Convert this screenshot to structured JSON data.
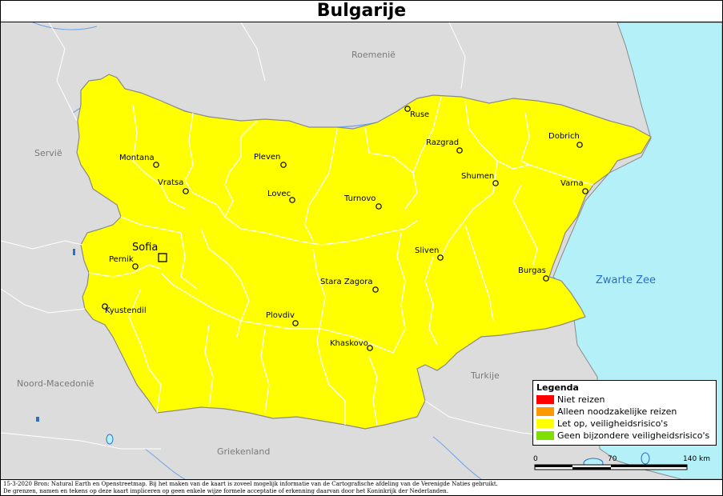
{
  "title": "Bulgarije",
  "neighbors": {
    "romania": "Roemenië",
    "serbia": "Servië",
    "north_macedonia": "Noord-Macedonië",
    "greece": "Griekenland",
    "turkey": "Turkije"
  },
  "sea": "Zwarte Zee",
  "capital": "Sofia",
  "cities": [
    "Ruse",
    "Dobrich",
    "Razgrad",
    "Montana",
    "Pleven",
    "Shumen",
    "Varna",
    "Vratsa",
    "Lovec",
    "Turnovo",
    "Pernik",
    "Sliven",
    "Burgas",
    "Stara Zagora",
    "Kyustendil",
    "Plovdiv",
    "Khaskovo"
  ],
  "colors": {
    "country_fill": "#ffff00",
    "neighbor_land": "#dcdcdc",
    "sea": "#b3f0f8",
    "border": "#8a8a8a",
    "province_border": "#ffffff"
  },
  "legend": {
    "title": "Legenda",
    "items": [
      {
        "label": "Niet reizen",
        "color": "#ff0000"
      },
      {
        "label": "Alleen noodzakelijke reizen",
        "color": "#ff9900"
      },
      {
        "label": "Let op, veiligheidsrisico's",
        "color": "#ffff00"
      },
      {
        "label": "Geen bijzondere veiligheidsrisico's",
        "color": "#7fe000"
      }
    ]
  },
  "scale": {
    "labels": [
      "0",
      "70",
      "140 km"
    ]
  },
  "footer": {
    "line1": "15-3-2020 Bron: Natural Earth en Openstreetmap. Bij het maken van de kaart is zoveel mogelijk informatie van de Cartografische afdeling van de Verenigde Naties gebruikt.",
    "line2": "De grenzen, namen en tekens op deze kaart impliceren op geen enkele wijze formele acceptatie of erkenning daarvan door het Koninkrijk der Nederlanden."
  }
}
